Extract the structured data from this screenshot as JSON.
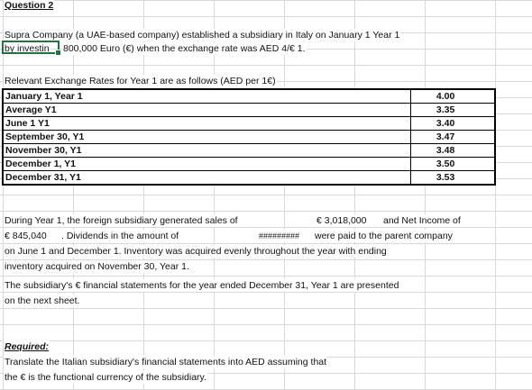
{
  "heading": "Question 2",
  "intro": {
    "line1": "Supra Company (a UAE-based company) established a subsidiary in Italy on January 1  Year 1",
    "line2_a": "by investin",
    "line2_b": "800,000 Euro (€) when the exchange rate was AED 4/€ 1."
  },
  "rates": {
    "caption": "Relevant Exchange Rates for Year 1 are as follows (AED  per 1€)",
    "rows": [
      {
        "label": "January 1, Year 1",
        "value": "4.00"
      },
      {
        "label": "Average Y1",
        "value": "3.35"
      },
      {
        "label": "June 1 Y1",
        "value": "3.40"
      },
      {
        "label": "September 30, Y1",
        "value": "3.47"
      },
      {
        "label": "November 30, Y1",
        "value": "3.48"
      },
      {
        "label": "December 1, Y1",
        "value": "3.50"
      },
      {
        "label": "December 31, Y1",
        "value": "3.53"
      }
    ]
  },
  "narrative": {
    "l1a": "During Year 1,  the  foreign subsidiary generated sales of",
    "l1b": "€ 3,018,000",
    "l1c": "and Net Income of",
    "l2a": "€ 845,040",
    "l2b": ". Dividends   in   the  amount  of",
    "l2c": "#########",
    "l2d": "were paid to the parent company",
    "l3": "on June 1 and December 1. Inventory was acquired evenly throughout the year with ending",
    "l4": "inventory acquired on November 30, Year 1.",
    "l5": "The subsidiary's € financial statements for the year ended December 31, Year 1 are presented",
    "l6": "on the next sheet."
  },
  "required": {
    "title": "Required:",
    "l1": "Translate the Italian subsidiary's financial statements into AED  assuming that",
    "l2": "the € is the functional currency of the subsidiary."
  }
}
